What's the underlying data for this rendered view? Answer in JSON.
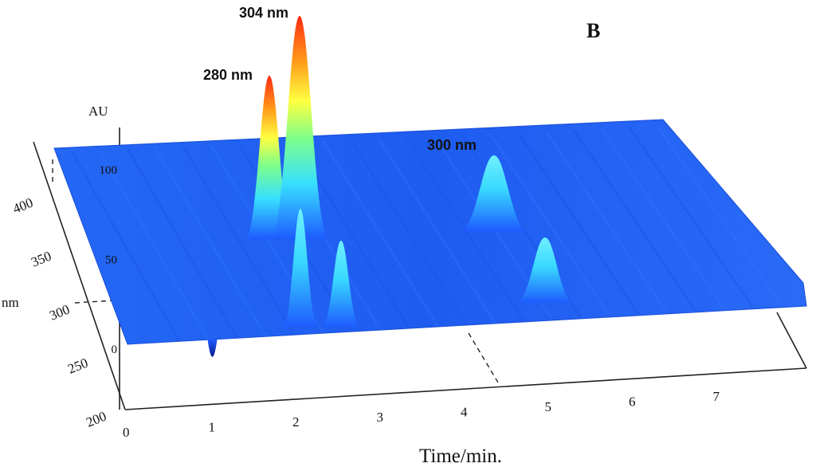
{
  "panel_label": "B",
  "chart_data": {
    "type": "surface",
    "xlabel": "Time/min.",
    "ylabel": "nm",
    "zlabel": "AU",
    "x_ticks": [
      "0",
      "1",
      "2",
      "3",
      "4",
      "5",
      "6",
      "7"
    ],
    "y_ticks": [
      "200",
      "250",
      "300",
      "350",
      "400"
    ],
    "z_ticks": [
      "0",
      "50",
      "100"
    ],
    "xlim": [
      0,
      8
    ],
    "ylim": [
      200,
      450
    ],
    "zlim": [
      0,
      120
    ],
    "colormap": [
      "#0a1a8c",
      "#1e5bff",
      "#2ea0ff",
      "#38e0ff",
      "#7dff8a",
      "#ffff40",
      "#ff9a1a",
      "#ff2a10"
    ],
    "baseline_color": "#1e5bff",
    "peaks": [
      {
        "time": 1.7,
        "wavelength": 280,
        "au": 100,
        "label": "280 nm"
      },
      {
        "time": 2.0,
        "wavelength": 304,
        "au": 118,
        "label": "304 nm"
      },
      {
        "time": 4.6,
        "wavelength": 300,
        "au": 25,
        "label": "300 nm"
      }
    ],
    "minor_peaks": [
      {
        "time": 2.0,
        "wavelength": 255,
        "au": 55
      },
      {
        "time": 2.4,
        "wavelength": 250,
        "au": 35
      },
      {
        "time": 4.9,
        "wavelength": 255,
        "au": 25
      }
    ],
    "dip": {
      "time": 1.0,
      "wavelength": 235,
      "au": -12
    }
  }
}
